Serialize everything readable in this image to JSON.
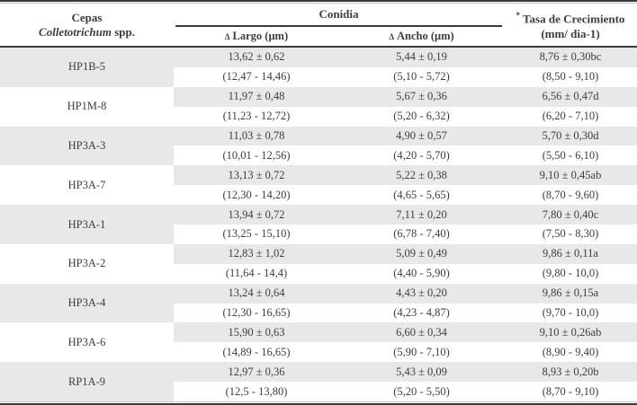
{
  "table": {
    "header": {
      "cepas_line1": "Cepas",
      "cepas_line2_italic": "Colletotrichum",
      "cepas_line2_rest": " spp.",
      "conidia": "Conidia",
      "largo_mark": "Δ",
      "largo_label": "Largo (μm)",
      "ancho_mark": "Δ",
      "ancho_label": "Ancho (μm)",
      "tasa_mark": "*",
      "tasa_line1": "Tasa de Crecimiento",
      "tasa_line2": "(mm/ dia-1)"
    },
    "colors": {
      "shaded_row": "#e8e8e8",
      "rule": "#3a3a3a",
      "text": "#3d3d3d"
    },
    "rows": [
      {
        "strain": "HP1B-5",
        "shaded": true,
        "largo_mean": "13,62 ± 0,62",
        "ancho_mean": "5,44 ± 0,19",
        "tasa_mean": "8,76 ± 0,30bc",
        "largo_range": "(12,47 - 14,46)",
        "ancho_range": "(5,10 - 5,72)",
        "tasa_range": "(8,50 - 9,10)"
      },
      {
        "strain": "HP1M-8",
        "shaded": false,
        "largo_mean": "11,97 ± 0,48",
        "ancho_mean": "5,67 ± 0,36",
        "tasa_mean": "6,56 ± 0,47d",
        "largo_range": "(11,23 - 12,72)",
        "ancho_range": "(5,20 - 6,32)",
        "tasa_range": "(6,20 - 7,10)"
      },
      {
        "strain": "HP3A-3",
        "shaded": true,
        "largo_mean": "11,03 ± 0,78",
        "ancho_mean": "4,90 ± 0,57",
        "tasa_mean": "5,70 ± 0,30d",
        "largo_range": "(10,01 - 12,56)",
        "ancho_range": "(4,20 - 5,70)",
        "tasa_range": "(5,50 - 6,10)"
      },
      {
        "strain": "HP3A-7",
        "shaded": false,
        "largo_mean": "13,13 ± 0,72",
        "ancho_mean": "5,22 ± 0,38",
        "tasa_mean": "9,10 ± 0,45ab",
        "largo_range": "(12,30 - 14,20)",
        "ancho_range": "(4,65 - 5,65)",
        "tasa_range": "(8,70 - 9,60)"
      },
      {
        "strain": "HP3A-1",
        "shaded": true,
        "largo_mean": "13,94 ± 0,72",
        "ancho_mean": "7,11 ± 0,20",
        "tasa_mean": "7,80 ± 0,40c",
        "largo_range": "(13,25 - 15,10)",
        "ancho_range": "(6,78 - 7,40)",
        "tasa_range": "(7,50 - 8,30)"
      },
      {
        "strain": "HP3A-2",
        "shaded": false,
        "largo_mean": "12,83 ± 1,02",
        "ancho_mean": "5,09 ± 0,49",
        "tasa_mean": "9,86 ± 0,11a",
        "largo_range": "(11,64 - 14,4)",
        "ancho_range": "(4,40 - 5,90)",
        "tasa_range": "(9,80 - 10,0)"
      },
      {
        "strain": "HP3A-4",
        "shaded": true,
        "largo_mean": "13,24 ± 0,64",
        "ancho_mean": "4,43 ± 0,20",
        "tasa_mean": "9,86 ± 0,15a",
        "largo_range": "(12,30 - 16,65)",
        "ancho_range": "(4,23 - 4,87)",
        "tasa_range": "(9,70 - 10,0)"
      },
      {
        "strain": "HP3A-6",
        "shaded": false,
        "largo_mean": "15,90 ± 0,63",
        "ancho_mean": "6,60 ± 0,34",
        "tasa_mean": "9,10 ± 0,26ab",
        "largo_range": "(14,89 - 16,65)",
        "ancho_range": "(5,90 - 7,10)",
        "tasa_range": "(8,90 - 9,40)"
      },
      {
        "strain": "RP1A-9",
        "shaded": true,
        "largo_mean": "12,97 ± 0,36",
        "ancho_mean": "5,43 ± 0,09",
        "tasa_mean": "8,93 ± 0,20b",
        "largo_range": "(12,5 - 13,80)",
        "ancho_range": "(5,20 - 5,50)",
        "tasa_range": "(8,70 - 9,10)"
      }
    ]
  }
}
